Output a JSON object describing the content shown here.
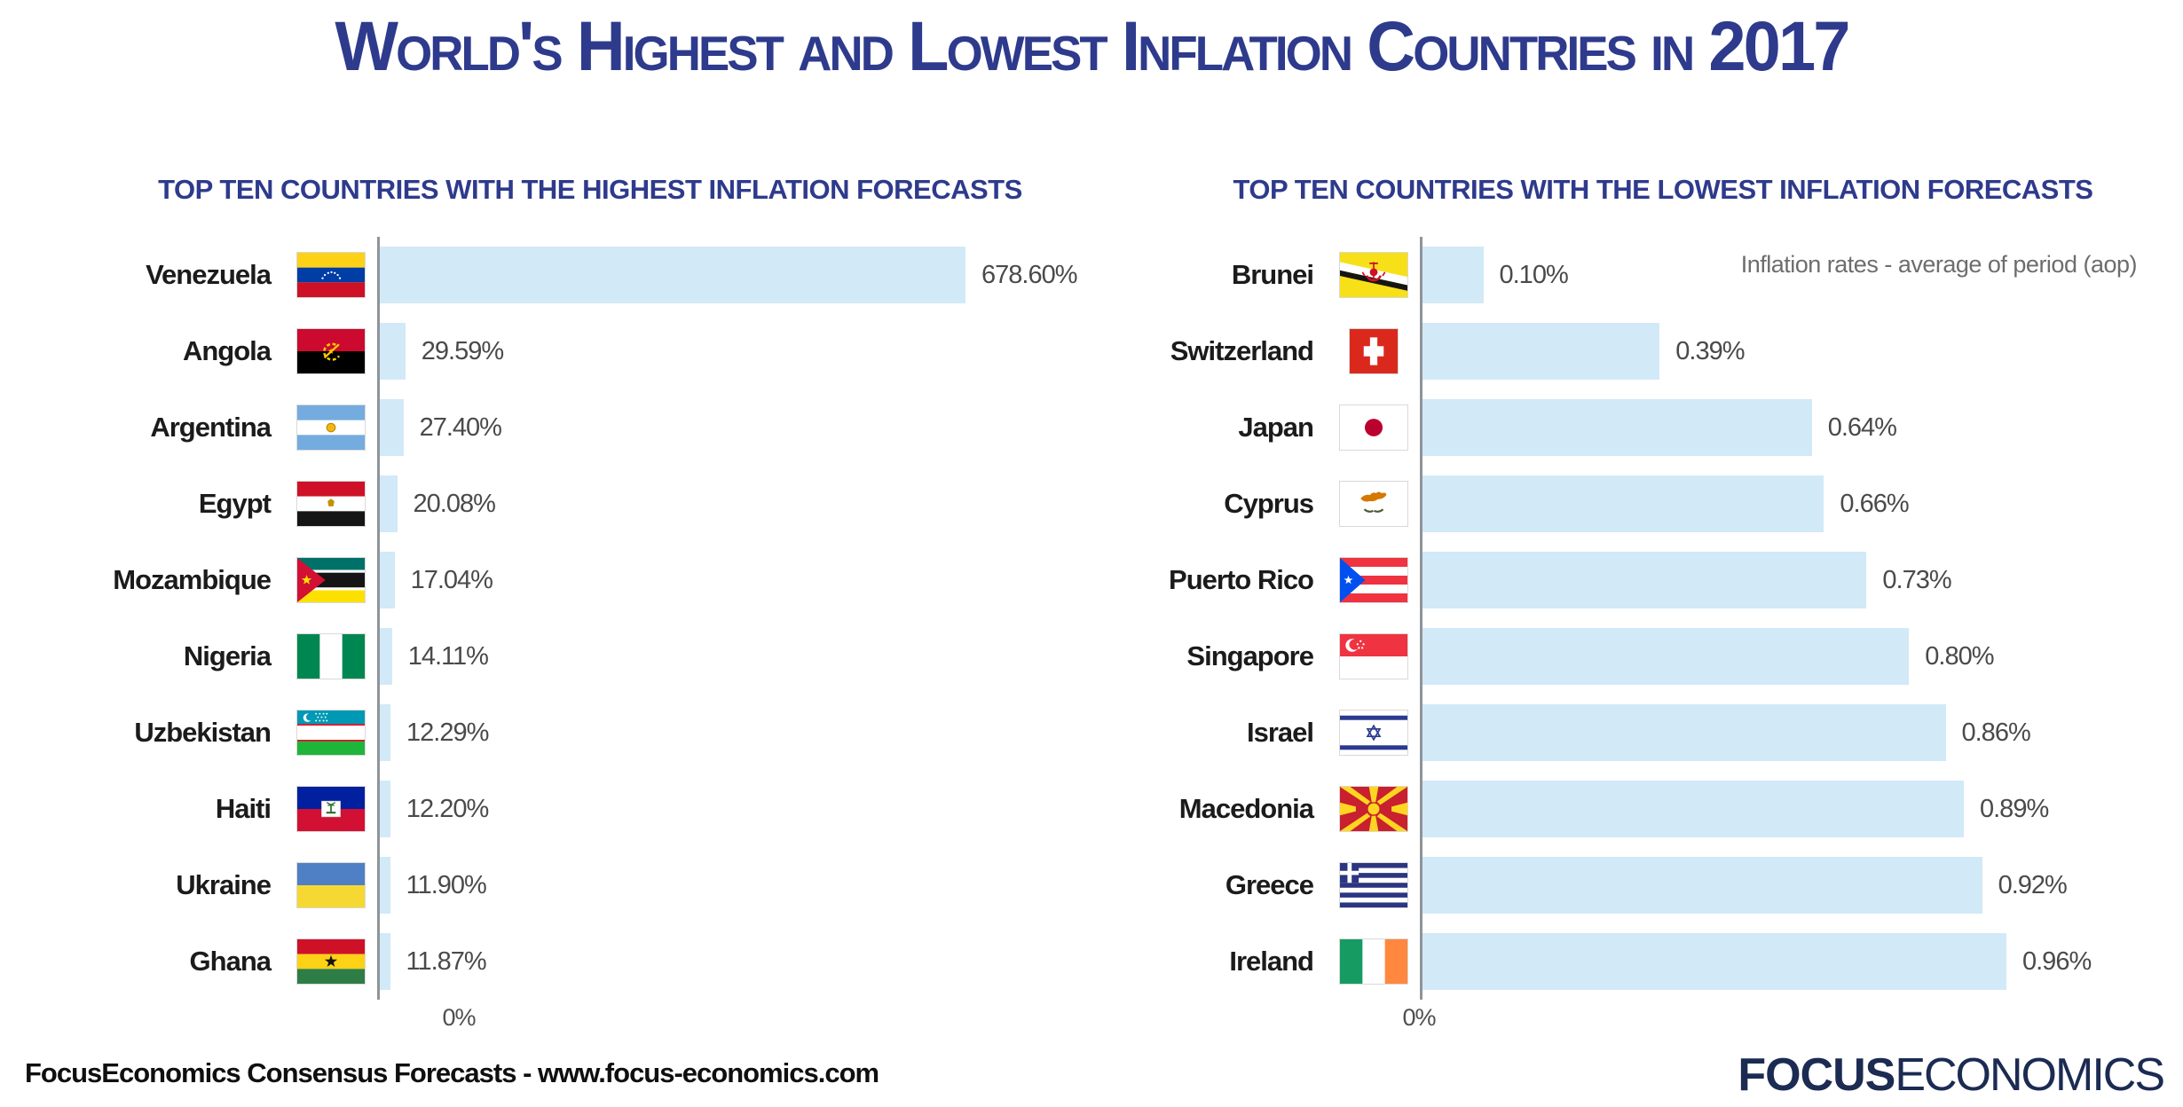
{
  "title": "World's Highest and Lowest Inflation Countries in 2017",
  "colors": {
    "title_navy": "#2e3a8c",
    "bar_blue": "#d2e9f7",
    "axis_gray": "#8f9499",
    "logo_navy": "#1b2b52",
    "value_gray": "#4a4a4a"
  },
  "chart_data": [
    {
      "type": "bar",
      "orientation": "horizontal",
      "title": "TOP TEN COUNTRIES WITH THE HIGHEST INFLATION FORECASTS",
      "unit": "%",
      "axis_label": "0%",
      "xlim": [
        0,
        678.6
      ],
      "grid": false,
      "categories": [
        "Venezuela",
        "Angola",
        "Argentina",
        "Egypt",
        "Mozambique",
        "Nigeria",
        "Uzbekistan",
        "Haiti",
        "Ukraine",
        "Ghana"
      ],
      "values": [
        678.6,
        29.59,
        27.4,
        20.08,
        17.04,
        14.11,
        12.29,
        12.2,
        11.9,
        11.87
      ],
      "value_labels": [
        "678.60%",
        "29.59%",
        "27.40%",
        "20.08%",
        "17.04%",
        "14.11%",
        "12.29%",
        "12.20%",
        "11.90%",
        "11.87%"
      ],
      "flags": [
        "venezuela",
        "angola",
        "argentina",
        "egypt",
        "mozambique",
        "nigeria",
        "uzbekistan",
        "haiti",
        "ukraine",
        "ghana"
      ]
    },
    {
      "type": "bar",
      "orientation": "horizontal",
      "title": "TOP TEN COUNTRIES WITH THE LOWEST INFLATION FORECASTS",
      "unit": "%",
      "axis_label": "0%",
      "xlim": [
        0,
        0.96
      ],
      "grid": false,
      "annotation": "Inflation rates - average of period (aop)",
      "categories": [
        "Brunei",
        "Switzerland",
        "Japan",
        "Cyprus",
        "Puerto Rico",
        "Singapore",
        "Israel",
        "Macedonia",
        "Greece",
        "Ireland"
      ],
      "values": [
        0.1,
        0.39,
        0.64,
        0.66,
        0.73,
        0.8,
        0.86,
        0.89,
        0.92,
        0.96
      ],
      "value_labels": [
        "0.10%",
        "0.39%",
        "0.64%",
        "0.66%",
        "0.73%",
        "0.80%",
        "0.86%",
        "0.89%",
        "0.92%",
        "0.96%"
      ],
      "flags": [
        "brunei",
        "switzerland",
        "japan",
        "cyprus",
        "puertorico",
        "singapore",
        "israel",
        "macedonia",
        "greece",
        "ireland"
      ]
    }
  ],
  "footer": {
    "source": "FocusEconomics Consensus Forecasts - www.focus-economics.com",
    "logo_bold": "FOCUS",
    "logo_light": "ECONOMICS"
  }
}
